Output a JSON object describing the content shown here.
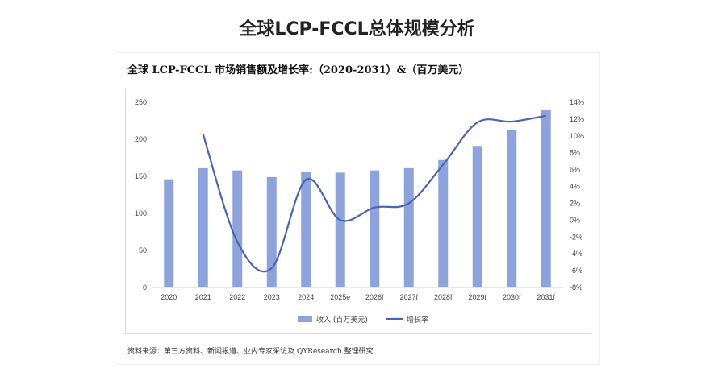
{
  "page": {
    "title": "全球LCP-FCCL总体规模分析"
  },
  "card": {
    "chart_title": "全球 LCP-FCCL 市场销售额及增长率:（2020-2031）&（百万美元）",
    "source": "资料来源：第三方资料、新闻报道、业内专家采访及 QYResearch 整理研究"
  },
  "colors": {
    "bar": "#8ea3dc",
    "line": "#4a65b0"
  },
  "chart_data": {
    "type": "bar",
    "categories": [
      "2020",
      "2021",
      "2022",
      "2023",
      "2024",
      "2025e",
      "2026f",
      "2027f",
      "2028f",
      "2029f",
      "2030f",
      "2031f"
    ],
    "series": [
      {
        "name": "收入 (百万美元)",
        "type": "bar",
        "axis": "left",
        "values": [
          146,
          161,
          158,
          149,
          156,
          155,
          158,
          161,
          172,
          191,
          213,
          240
        ]
      },
      {
        "name": "增长率",
        "type": "line",
        "axis": "right",
        "values": [
          null,
          10.2,
          -2.6,
          -5.7,
          4.8,
          0.0,
          1.5,
          2.0,
          6.6,
          11.6,
          11.7,
          12.4
        ]
      }
    ],
    "y_left": {
      "ylim": [
        0,
        250
      ],
      "ticks": [
        "0",
        "50",
        "100",
        "150",
        "200",
        "250"
      ]
    },
    "y_right": {
      "ylim": [
        -8,
        14
      ],
      "ticks": [
        "-8%",
        "-6%",
        "-4%",
        "-2%",
        "0%",
        "2%",
        "4%",
        "6%",
        "8%",
        "10%",
        "12%",
        "14%"
      ]
    },
    "grid": false,
    "legend": "bottom"
  }
}
